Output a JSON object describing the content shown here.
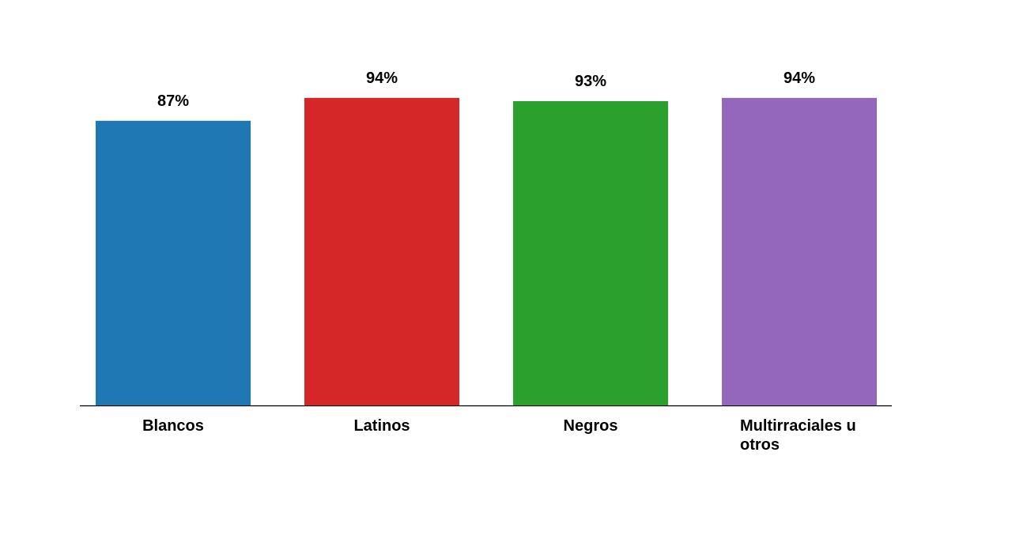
{
  "chart_data": {
    "type": "bar",
    "categories": [
      "Blancos",
      "Latinos",
      "Negros",
      "Multirraciales u otros"
    ],
    "values": [
      87,
      94,
      93,
      94
    ],
    "value_labels": [
      "87%",
      "94%",
      "93%",
      "94%"
    ],
    "colors": [
      "#1f77b4",
      "#d62728",
      "#2ca02c",
      "#9467bd"
    ]
  }
}
